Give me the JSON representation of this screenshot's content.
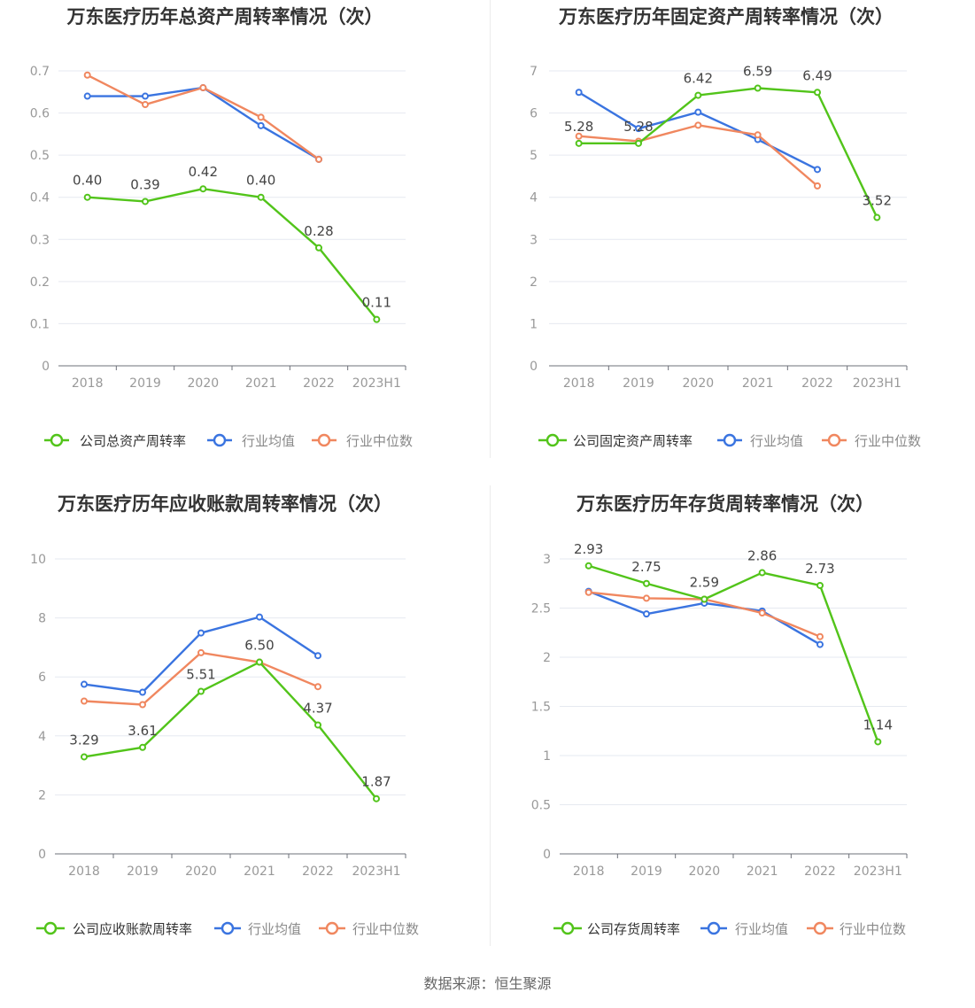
{
  "colors": {
    "company": "#52c41a",
    "industry_avg": "#3a74e0",
    "industry_median": "#f0875f",
    "axis_label": "#999999",
    "grid": "#e6e9f0",
    "title": "#333333"
  },
  "source": "数据来源：恒生聚源",
  "chart_data": [
    {
      "type": "line",
      "title": "万东医疗历年总资产周转率情况（次）",
      "categories": [
        "2018",
        "2019",
        "2020",
        "2021",
        "2022",
        "2023H1"
      ],
      "ylim": [
        0,
        0.7
      ],
      "yticks": [
        "0",
        "0.1",
        "0.2",
        "0.3",
        "0.4",
        "0.5",
        "0.6",
        "0.7"
      ],
      "series": [
        {
          "name": "公司总资产周转率",
          "values": [
            0.4,
            0.39,
            0.42,
            0.4,
            0.28,
            0.11
          ],
          "labels": [
            "0.40",
            "0.39",
            "0.42",
            "0.40",
            "0.28",
            "0.11"
          ]
        },
        {
          "name": "行业均值",
          "values": [
            0.64,
            0.64,
            0.66,
            0.57,
            0.49,
            null
          ]
        },
        {
          "name": "行业中位数",
          "values": [
            0.69,
            0.62,
            0.66,
            0.59,
            0.49,
            null
          ]
        }
      ]
    },
    {
      "type": "line",
      "title": "万东医疗历年固定资产周转率情况（次）",
      "categories": [
        "2018",
        "2019",
        "2020",
        "2021",
        "2022",
        "2023H1"
      ],
      "ylim": [
        0,
        7
      ],
      "yticks": [
        "0",
        "1",
        "2",
        "3",
        "4",
        "5",
        "6",
        "7"
      ],
      "series": [
        {
          "name": "公司固定资产周转率",
          "values": [
            5.28,
            5.28,
            6.42,
            6.59,
            6.49,
            3.52
          ],
          "labels": [
            "5.28",
            "5.28",
            "6.42",
            "6.59",
            "6.49",
            "3.52"
          ]
        },
        {
          "name": "行业均值",
          "values": [
            6.49,
            5.63,
            6.02,
            5.37,
            4.66,
            null
          ]
        },
        {
          "name": "行业中位数",
          "values": [
            5.45,
            5.33,
            5.71,
            5.48,
            4.27,
            null
          ]
        }
      ]
    },
    {
      "type": "line",
      "title": "万东医疗历年应收账款周转率情况（次）",
      "categories": [
        "2018",
        "2019",
        "2020",
        "2021",
        "2022",
        "2023H1"
      ],
      "ylim": [
        0,
        10
      ],
      "yticks": [
        "0",
        "2",
        "4",
        "6",
        "8",
        "10"
      ],
      "series": [
        {
          "name": "公司应收账款周转率",
          "values": [
            3.29,
            3.61,
            5.51,
            6.5,
            4.37,
            1.87
          ],
          "labels": [
            "3.29",
            "3.61",
            "5.51",
            "6.50",
            "4.37",
            "1.87"
          ]
        },
        {
          "name": "行业均值",
          "values": [
            5.75,
            5.48,
            7.49,
            8.03,
            6.72,
            null
          ]
        },
        {
          "name": "行业中位数",
          "values": [
            5.18,
            5.06,
            6.82,
            6.5,
            5.67,
            null
          ]
        }
      ]
    },
    {
      "type": "line",
      "title": "万东医疗历年存货周转率情况（次）",
      "categories": [
        "2018",
        "2019",
        "2020",
        "2021",
        "2022",
        "2023H1"
      ],
      "ylim": [
        0,
        3
      ],
      "yticks": [
        "0",
        "0.5",
        "1",
        "1.5",
        "2",
        "2.5",
        "3"
      ],
      "series": [
        {
          "name": "公司存货周转率",
          "values": [
            2.93,
            2.75,
            2.59,
            2.86,
            2.73,
            1.14
          ],
          "labels": [
            "2.93",
            "2.75",
            "2.59",
            "2.86",
            "2.73",
            "1.14"
          ]
        },
        {
          "name": "行业均值",
          "values": [
            2.67,
            2.44,
            2.55,
            2.47,
            2.13,
            null
          ]
        },
        {
          "name": "行业中位数",
          "values": [
            2.66,
            2.6,
            2.59,
            2.45,
            2.21,
            null
          ]
        }
      ]
    }
  ]
}
